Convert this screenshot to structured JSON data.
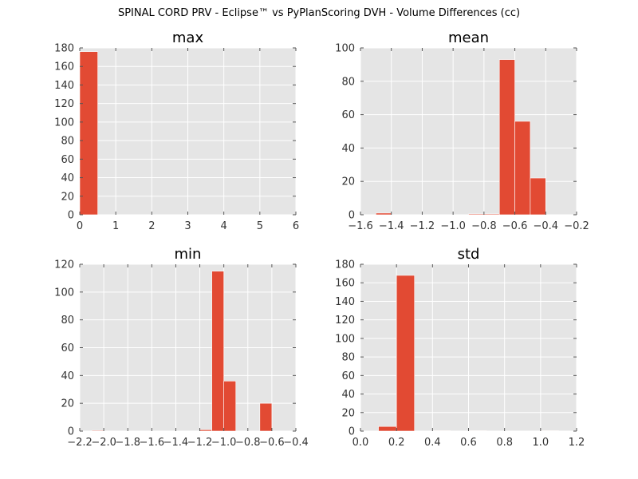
{
  "figure": {
    "title": "SPINAL CORD PRV - Eclipse™ vs PyPlanScoring DVH - Volume Differences (cc)"
  },
  "colors": {
    "bar": "#E24A33",
    "panel_bg": "#E5E5E5",
    "grid": "#FFFFFF",
    "tick_text": "#333333"
  },
  "chart_data": [
    {
      "type": "bar",
      "title": "max",
      "xlim": [
        0,
        6
      ],
      "ylim": [
        0,
        180
      ],
      "xticks": [
        0,
        1,
        2,
        3,
        4,
        5,
        6
      ],
      "xtick_labels": [
        "0",
        "1",
        "2",
        "3",
        "4",
        "5",
        "6"
      ],
      "yticks": [
        0,
        20,
        40,
        60,
        80,
        100,
        120,
        140,
        160,
        180
      ],
      "ytick_labels": [
        "0",
        "20",
        "40",
        "60",
        "80",
        "100",
        "120",
        "140",
        "160",
        "180"
      ],
      "grid": true,
      "bins": [
        [
          0,
          0.5
        ],
        [
          0.5,
          1.0
        ],
        [
          1.0,
          1.5
        ],
        [
          1.5,
          2.0
        ],
        [
          2.0,
          2.5
        ],
        [
          2.5,
          3.0
        ],
        [
          3.0,
          3.5
        ],
        [
          3.5,
          4.0
        ],
        [
          4.0,
          4.5
        ],
        [
          4.5,
          5.0
        ],
        [
          5.0,
          5.5
        ],
        [
          5.5,
          6.0
        ]
      ],
      "counts": [
        176,
        0,
        0,
        0,
        0,
        0,
        0,
        0,
        0,
        0,
        0,
        0
      ]
    },
    {
      "type": "bar",
      "title": "mean",
      "xlim": [
        -1.6,
        -0.2
      ],
      "ylim": [
        0,
        100
      ],
      "xticks": [
        -1.6,
        -1.4,
        -1.2,
        -1.0,
        -0.8,
        -0.6,
        -0.4,
        -0.2
      ],
      "xtick_labels": [
        "−1.6",
        "−1.4",
        "−1.2",
        "−1.0",
        "−0.8",
        "−0.6",
        "−0.4",
        "−0.2"
      ],
      "yticks": [
        0,
        20,
        40,
        60,
        80,
        100
      ],
      "ytick_labels": [
        "0",
        "20",
        "40",
        "60",
        "80",
        "100"
      ],
      "grid": true,
      "bins": [
        [
          -1.5,
          -1.4
        ],
        [
          -1.4,
          -1.3
        ],
        [
          -1.3,
          -1.2
        ],
        [
          -1.2,
          -1.1
        ],
        [
          -1.1,
          -1.0
        ],
        [
          -1.0,
          -0.9
        ],
        [
          -0.9,
          -0.8
        ],
        [
          -0.8,
          -0.7
        ],
        [
          -0.7,
          -0.6
        ],
        [
          -0.6,
          -0.5
        ],
        [
          -0.5,
          -0.4
        ],
        [
          -0.4,
          -0.3
        ]
      ],
      "counts": [
        1,
        0,
        0,
        0,
        0,
        0,
        0.5,
        0.5,
        93,
        56,
        22,
        0
      ]
    },
    {
      "type": "bar",
      "title": "min",
      "xlim": [
        -2.2,
        -0.4
      ],
      "ylim": [
        0,
        120
      ],
      "xticks": [
        -2.2,
        -2.0,
        -1.8,
        -1.6,
        -1.4,
        -1.2,
        -1.0,
        -0.8,
        -0.6,
        -0.4
      ],
      "xtick_labels": [
        "−2.2",
        "−2.0",
        "−1.8",
        "−1.6",
        "−1.4",
        "−1.2",
        "−1.0",
        "−0.8",
        "−0.6",
        "−0.4"
      ],
      "yticks": [
        0,
        20,
        40,
        60,
        80,
        100,
        120
      ],
      "ytick_labels": [
        "0",
        "20",
        "40",
        "60",
        "80",
        "100",
        "120"
      ],
      "grid": true,
      "bins": [
        [
          -2.1,
          -2.0
        ],
        [
          -2.0,
          -1.9
        ],
        [
          -1.9,
          -1.8
        ],
        [
          -1.8,
          -1.7
        ],
        [
          -1.7,
          -1.6
        ],
        [
          -1.6,
          -1.5
        ],
        [
          -1.5,
          -1.4
        ],
        [
          -1.4,
          -1.3
        ],
        [
          -1.3,
          -1.2
        ],
        [
          -1.2,
          -1.1
        ],
        [
          -1.1,
          -1.0
        ],
        [
          -1.0,
          -0.9
        ],
        [
          -0.9,
          -0.8
        ],
        [
          -0.8,
          -0.7
        ],
        [
          -0.7,
          -0.6
        ],
        [
          -0.6,
          -0.5
        ]
      ],
      "counts": [
        0.5,
        0,
        0,
        0,
        0,
        0,
        0,
        0,
        0,
        1,
        115,
        36,
        0,
        0,
        20,
        0
      ]
    },
    {
      "type": "bar",
      "title": "std",
      "xlim": [
        0.0,
        1.2
      ],
      "ylim": [
        0,
        180
      ],
      "xticks": [
        0.0,
        0.2,
        0.4,
        0.6,
        0.8,
        1.0,
        1.2
      ],
      "xtick_labels": [
        "0.0",
        "0.2",
        "0.4",
        "0.6",
        "0.8",
        "1.0",
        "1.2"
      ],
      "yticks": [
        0,
        20,
        40,
        60,
        80,
        100,
        120,
        140,
        160,
        180
      ],
      "ytick_labels": [
        "0",
        "20",
        "40",
        "60",
        "80",
        "100",
        "120",
        "140",
        "160",
        "180"
      ],
      "grid": true,
      "bins": [
        [
          0.1,
          0.2
        ],
        [
          0.2,
          0.3
        ],
        [
          0.3,
          0.4
        ],
        [
          0.4,
          0.5
        ],
        [
          0.5,
          0.6
        ],
        [
          0.6,
          0.7
        ],
        [
          0.7,
          0.8
        ],
        [
          0.8,
          0.9
        ],
        [
          0.9,
          1.0
        ],
        [
          1.0,
          1.1
        ]
      ],
      "counts": [
        5,
        168,
        0,
        0.5,
        0,
        0.5,
        0,
        0,
        0,
        0.5
      ]
    }
  ]
}
